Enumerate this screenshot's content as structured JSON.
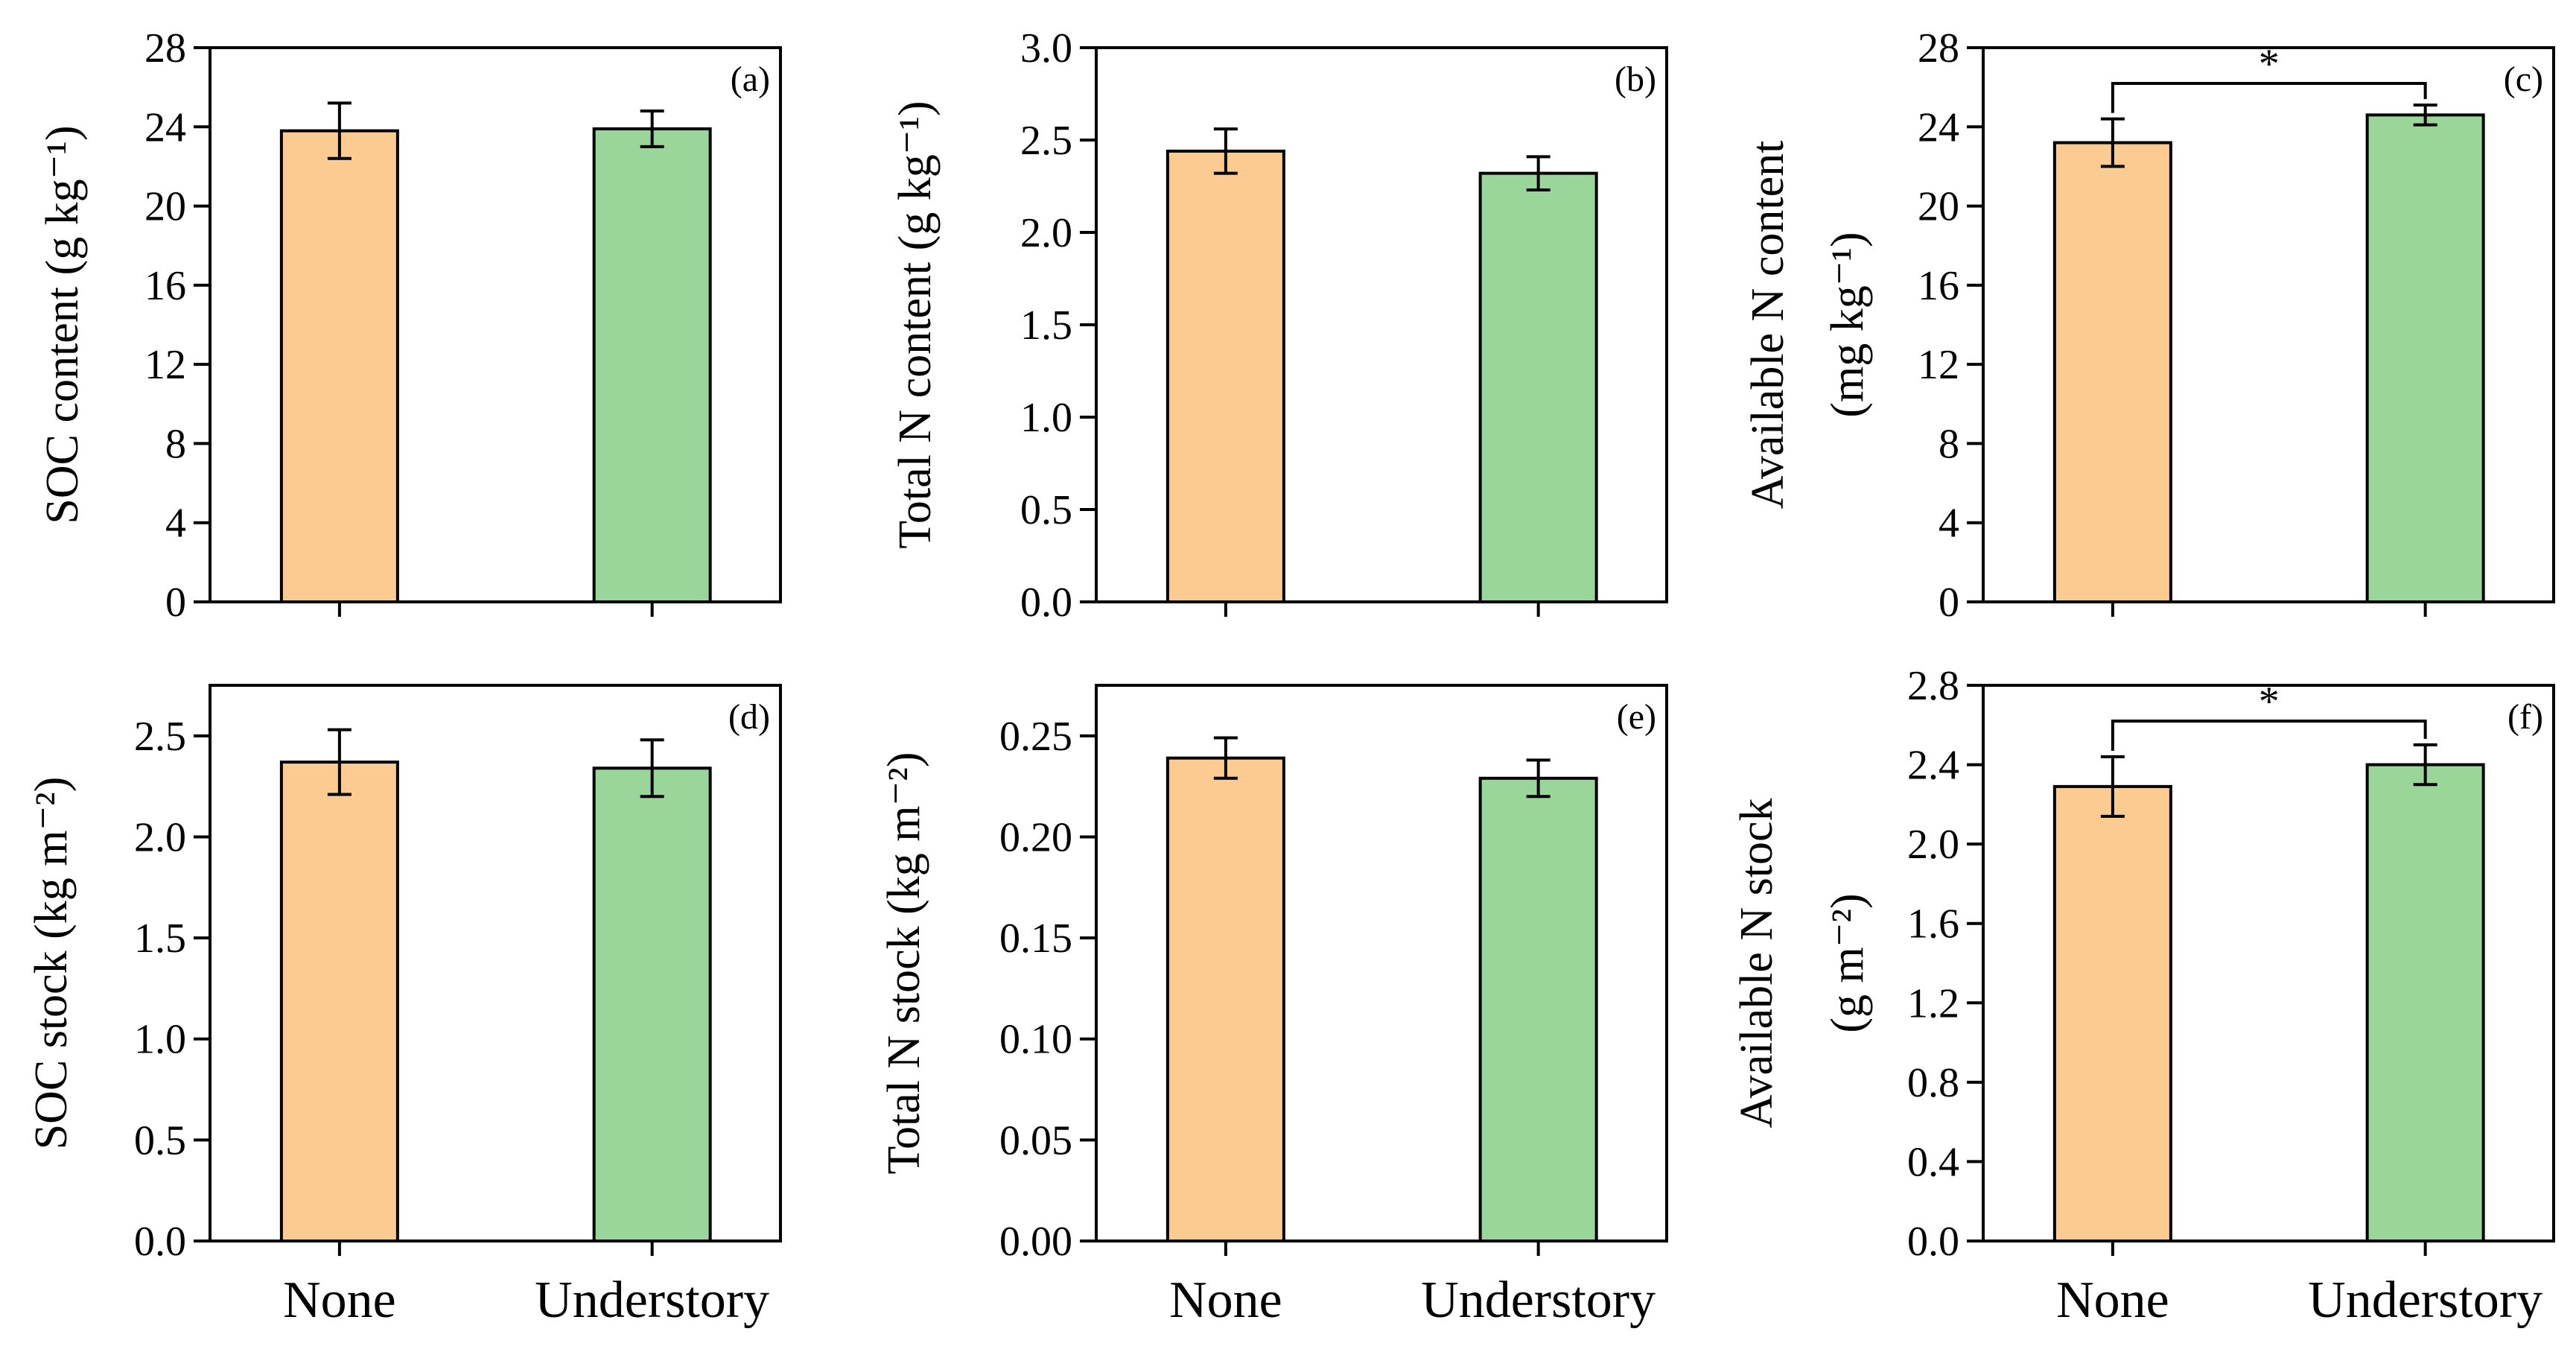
{
  "colors": {
    "none": "#FBCB92",
    "understory": "#9AD699",
    "axis": "#000000"
  },
  "chart_data": [
    {
      "panel": "(a)",
      "type": "bar",
      "title": "",
      "xlabel": "",
      "ylabel_lines": [
        "SOC content (g kg⁻¹)"
      ],
      "categories": [
        "None",
        "Understory"
      ],
      "values": [
        23.8,
        23.9
      ],
      "errors": [
        1.4,
        0.9
      ],
      "ylim": [
        0,
        28
      ],
      "yticks": [
        "0",
        "4",
        "8",
        "12",
        "16",
        "20",
        "24",
        "28"
      ],
      "significance": null,
      "show_category_labels": false
    },
    {
      "panel": "(b)",
      "type": "bar",
      "title": "",
      "xlabel": "",
      "ylabel_lines": [
        "Total N content (g kg⁻¹)"
      ],
      "categories": [
        "None",
        "Understory"
      ],
      "values": [
        2.44,
        2.32
      ],
      "errors": [
        0.12,
        0.09
      ],
      "ylim": [
        0,
        3.0
      ],
      "yticks": [
        "0.0",
        "0.5",
        "1.0",
        "1.5",
        "2.0",
        "2.5",
        "3.0"
      ],
      "significance": null,
      "show_category_labels": false
    },
    {
      "panel": "(c)",
      "type": "bar",
      "title": "",
      "xlabel": "",
      "ylabel_lines": [
        "Available N content",
        "(mg kg⁻¹)"
      ],
      "categories": [
        "None",
        "Understory"
      ],
      "values": [
        23.2,
        24.6
      ],
      "errors": [
        1.2,
        0.5
      ],
      "ylim": [
        0,
        28
      ],
      "yticks": [
        "0",
        "4",
        "8",
        "12",
        "16",
        "20",
        "24",
        "28"
      ],
      "significance": "*",
      "show_category_labels": false
    },
    {
      "panel": "(d)",
      "type": "bar",
      "title": "",
      "xlabel": "",
      "ylabel_lines": [
        "SOC stock (kg m⁻²)"
      ],
      "categories": [
        "None",
        "Understory"
      ],
      "values": [
        2.37,
        2.34
      ],
      "errors": [
        0.16,
        0.14
      ],
      "ylim": [
        0,
        2.75
      ],
      "yticks": [
        "0.0",
        "0.5",
        "1.0",
        "1.5",
        "2.0",
        "2.5"
      ],
      "significance": null,
      "show_category_labels": true
    },
    {
      "panel": "(e)",
      "type": "bar",
      "title": "",
      "xlabel": "",
      "ylabel_lines": [
        "Total N stock (kg m⁻²)"
      ],
      "categories": [
        "None",
        "Understory"
      ],
      "values": [
        0.239,
        0.229
      ],
      "errors": [
        0.01,
        0.009
      ],
      "ylim": [
        0,
        0.275
      ],
      "yticks": [
        "0.00",
        "0.05",
        "0.10",
        "0.15",
        "0.20",
        "0.25"
      ],
      "significance": null,
      "show_category_labels": true
    },
    {
      "panel": "(f)",
      "type": "bar",
      "title": "",
      "xlabel": "",
      "ylabel_lines": [
        "Available N stock",
        "(g m⁻²)"
      ],
      "categories": [
        "None",
        "Understory"
      ],
      "values": [
        2.29,
        2.4
      ],
      "errors": [
        0.15,
        0.1
      ],
      "ylim": [
        0,
        2.8
      ],
      "yticks": [
        "0.0",
        "0.4",
        "0.8",
        "1.2",
        "1.6",
        "2.0",
        "2.4",
        "2.8"
      ],
      "significance": "*",
      "show_category_labels": true
    }
  ]
}
